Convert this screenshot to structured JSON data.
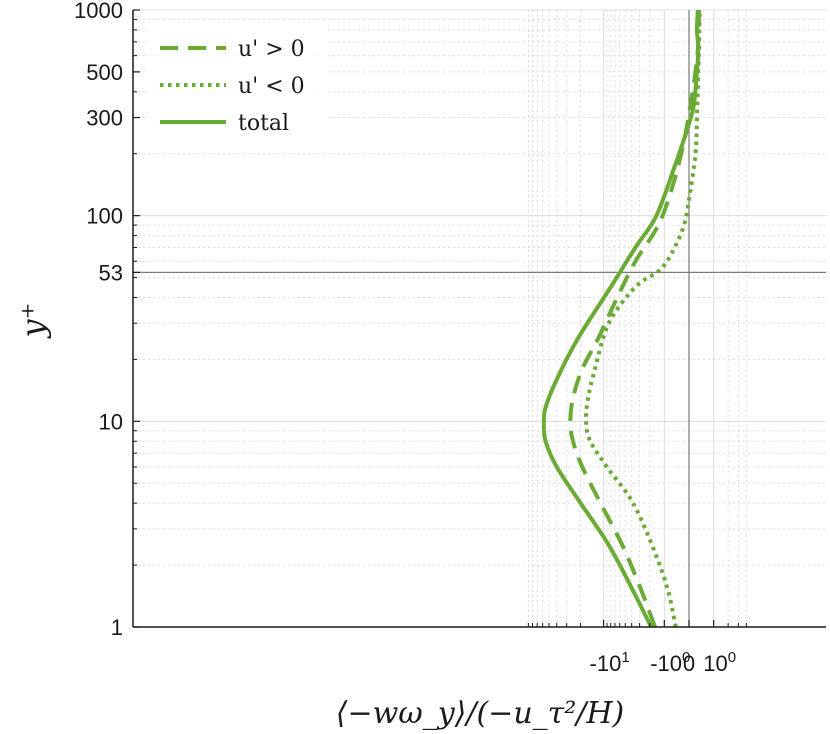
{
  "chart_data": {
    "type": "line",
    "title": "",
    "xlabel": "⟨−wω_y⟩/(−u_τ²/H)",
    "ylabel": "y⁺",
    "xscale": "symlog",
    "yscale": "log",
    "ylim": [
      1,
      1000
    ],
    "grid": true,
    "legend_position": "top-left",
    "colors": {
      "series": "#6aaa35",
      "axis": "#1a1a1a",
      "grid": "#dcdcdc",
      "reference_line": "#7a7a7a"
    },
    "x_ticks": [
      {
        "value": -10,
        "label": "-10",
        "exp": "1"
      },
      {
        "value": -1,
        "label": "-10",
        "exp": "0"
      },
      {
        "value": 0,
        "label": "0",
        "exp": ""
      },
      {
        "value": 1,
        "label": "10",
        "exp": "0"
      }
    ],
    "y_ticks": [
      {
        "value": 1,
        "label": "1"
      },
      {
        "value": 10,
        "label": "10"
      },
      {
        "value": 53,
        "label": "53"
      },
      {
        "value": 100,
        "label": "100"
      },
      {
        "value": 300,
        "label": "300"
      },
      {
        "value": 500,
        "label": "500"
      },
      {
        "value": 1000,
        "label": "1000"
      }
    ],
    "reference_lines": {
      "x": 0,
      "y": 53
    },
    "series": [
      {
        "name": "u' > 0",
        "style": "dashed",
        "points": [
          [
            -1.6,
            1
          ],
          [
            -2.8,
            1.5
          ],
          [
            -5.5,
            2.5
          ],
          [
            -11,
            4
          ],
          [
            -19,
            6
          ],
          [
            -25,
            8
          ],
          [
            -27,
            10
          ],
          [
            -25,
            13
          ],
          [
            -19,
            18
          ],
          [
            -12,
            25
          ],
          [
            -6.5,
            40
          ],
          [
            -3.5,
            60
          ],
          [
            -1.8,
            80
          ],
          [
            -1.1,
            100
          ],
          [
            -0.5,
            150
          ],
          [
            -0.15,
            230
          ],
          [
            0.05,
            350
          ],
          [
            0.2,
            500
          ],
          [
            0.3,
            700
          ],
          [
            0.32,
            1000
          ]
        ]
      },
      {
        "name": "u' < 0",
        "style": "dotted",
        "points": [
          [
            -0.45,
            1
          ],
          [
            -0.8,
            1.5
          ],
          [
            -1.6,
            2.3
          ],
          [
            -3.8,
            4
          ],
          [
            -9,
            6
          ],
          [
            -15,
            8
          ],
          [
            -17,
            10
          ],
          [
            -16,
            13
          ],
          [
            -13,
            18
          ],
          [
            -8.5,
            30
          ],
          [
            -3.5,
            45
          ],
          [
            -1.2,
            55
          ],
          [
            -0.5,
            70
          ],
          [
            -0.15,
            90
          ],
          [
            0.0,
            120
          ],
          [
            0.2,
            200
          ],
          [
            0.25,
            300
          ],
          [
            0.3,
            500
          ],
          [
            0.33,
            700
          ],
          [
            0.35,
            1000
          ]
        ]
      },
      {
        "name": "total",
        "style": "solid",
        "points": [
          [
            -1.9,
            1
          ],
          [
            -3.8,
            1.5
          ],
          [
            -8.5,
            2.5
          ],
          [
            -20,
            4
          ],
          [
            -40,
            6
          ],
          [
            -55,
            8
          ],
          [
            -58,
            10
          ],
          [
            -54,
            12
          ],
          [
            -40,
            16
          ],
          [
            -22,
            25
          ],
          [
            -8,
            45
          ],
          [
            -3.5,
            70
          ],
          [
            -1.5,
            100
          ],
          [
            -0.45,
            180
          ],
          [
            0.0,
            280
          ],
          [
            0.15,
            350
          ],
          [
            0.25,
            500
          ],
          [
            0.3,
            650
          ],
          [
            0.25,
            800
          ],
          [
            0.28,
            1000
          ]
        ]
      }
    ]
  }
}
